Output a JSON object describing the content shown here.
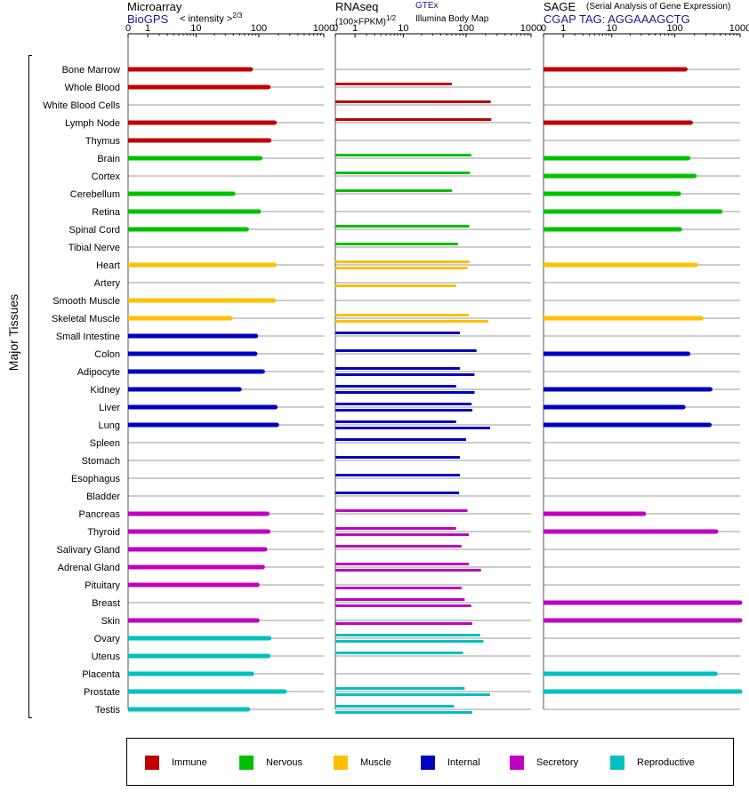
{
  "y_axis_label": "Major Tissues",
  "panels": [
    {
      "id": "microarray",
      "title": "Microarray",
      "subtitle": "BioGPS",
      "scale_label": "< intensity >",
      "scale_exp": "2/3"
    },
    {
      "id": "rnaseq",
      "title": "RNAseq",
      "scale_label": "(100×FPKM)",
      "scale_exp": "1/2",
      "source1": "GTEx",
      "source2": "Illumina Body Map"
    },
    {
      "id": "sage",
      "title": "SAGE",
      "title_note": "(Serial Analysis of Gene Expression)",
      "subtitle": "CGAP  TAG: AGGAAAGCTG"
    }
  ],
  "legend": [
    {
      "label": "Immune",
      "color": "#c00000"
    },
    {
      "label": "Nervous",
      "color": "#00c000"
    },
    {
      "label": "Muscle",
      "color": "#ffc000"
    },
    {
      "label": "Internal",
      "color": "#0000c0"
    },
    {
      "label": "Secretory",
      "color": "#c000c0"
    },
    {
      "label": "Reproductive",
      "color": "#00c0c0"
    }
  ],
  "chart_data": {
    "type": "bar",
    "orientation": "horizontal",
    "x_ticks": [
      0,
      1,
      10,
      100,
      1000
    ],
    "x_max": 1000,
    "categories": [
      "Bone Marrow",
      "Whole Blood",
      "White Blood Cells",
      "Lymph Node",
      "Thymus",
      "Brain",
      "Cortex",
      "Cerebellum",
      "Retina",
      "Spinal Cord",
      "Tibial Nerve",
      "Heart",
      "Artery",
      "Smooth Muscle",
      "Skeletal Muscle",
      "Small Intestine",
      "Colon",
      "Adipocyte",
      "Kidney",
      "Liver",
      "Lung",
      "Spleen",
      "Stomach",
      "Esophagus",
      "Bladder",
      "Pancreas",
      "Thyroid",
      "Salivary Gland",
      "Adrenal Gland",
      "Pituitary",
      "Breast",
      "Skin",
      "Ovary",
      "Uterus",
      "Placenta",
      "Prostate",
      "Testis"
    ],
    "groups": [
      "Immune",
      "Immune",
      "Immune",
      "Immune",
      "Immune",
      "Nervous",
      "Nervous",
      "Nervous",
      "Nervous",
      "Nervous",
      "Nervous",
      "Muscle",
      "Muscle",
      "Muscle",
      "Muscle",
      "Internal",
      "Internal",
      "Internal",
      "Internal",
      "Internal",
      "Internal",
      "Internal",
      "Internal",
      "Internal",
      "Internal",
      "Secretory",
      "Secretory",
      "Secretory",
      "Secretory",
      "Secretory",
      "Secretory",
      "Secretory",
      "Reproductive",
      "Reproductive",
      "Reproductive",
      "Reproductive",
      "Reproductive"
    ],
    "series": [
      {
        "name": "Microarray",
        "values": [
          75,
          140,
          null,
          175,
          145,
          105,
          null,
          40,
          100,
          65,
          null,
          175,
          null,
          170,
          36,
          90,
          88,
          115,
          50,
          180,
          190,
          null,
          null,
          null,
          null,
          135,
          140,
          125,
          115,
          95,
          null,
          95,
          145,
          140,
          78,
          250,
          68
        ]
      },
      {
        "name": "GTEx",
        "values": [
          null,
          null,
          240,
          null,
          null,
          120,
          115,
          null,
          null,
          112,
          null,
          113,
          null,
          null,
          110,
          null,
          145,
          null,
          null,
          122,
          null,
          null,
          null,
          null,
          null,
          null,
          null,
          null,
          null,
          null,
          null,
          null,
          165,
          null,
          null,
          null,
          null
        ]
      },
      {
        "name": "GTEx",
        "values": [
          null,
          60,
          null,
          245,
          null,
          null,
          60,
          60,
          null,
          60,
          75,
          60,
          null,
          null,
          60,
          80,
          75,
          80,
          70,
          60,
          70,
          100,
          80,
          80,
          78,
          105,
          70,
          85,
          110,
          null,
          95,
          null,
          140,
          90,
          null,
          95,
          65
        ]
      },
      {
        "name": "Illumina Body Map",
        "values": [
          null,
          null,
          null,
          null,
          null,
          null,
          null,
          null,
          null,
          null,
          null,
          null,
          70,
          null,
          null,
          null,
          null,
          null,
          null,
          null,
          null,
          null,
          null,
          null,
          null,
          null,
          null,
          null,
          null,
          null,
          null,
          null,
          null,
          null,
          null,
          null,
          null
        ]
      },
      {
        "name": "Illumina Body Map",
        "values": [
          null,
          null,
          null,
          null,
          null,
          null,
          null,
          null,
          null,
          null,
          null,
          105,
          null,
          null,
          220,
          null,
          null,
          135,
          135,
          125,
          235,
          null,
          null,
          null,
          null,
          null,
          110,
          null,
          170,
          85,
          120,
          125,
          185,
          null,
          null,
          235,
          125
        ]
      },
      {
        "name": "SAGE",
        "values": [
          145,
          null,
          null,
          175,
          null,
          160,
          200,
          115,
          500,
          120,
          null,
          210,
          null,
          null,
          255,
          null,
          160,
          null,
          350,
          135,
          340,
          null,
          null,
          null,
          null,
          33,
          430,
          null,
          null,
          null,
          1000,
          1000,
          null,
          null,
          420,
          1000,
          null
        ]
      }
    ]
  }
}
